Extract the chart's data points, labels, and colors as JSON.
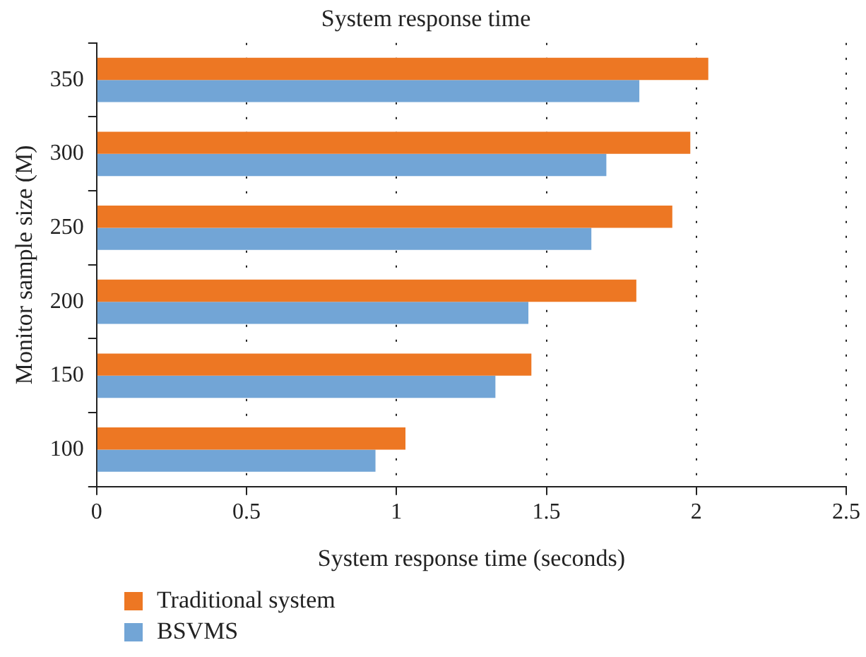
{
  "chart_data": {
    "type": "bar",
    "orientation": "horizontal",
    "title": "System response time",
    "xlabel": "System response time (seconds)",
    "ylabel": "Monitor sample size (M)",
    "categories": [
      "350",
      "300",
      "250",
      "200",
      "150",
      "100"
    ],
    "series": [
      {
        "name": "Traditional system",
        "color": "#ed7723",
        "values": [
          2.04,
          1.98,
          1.92,
          1.8,
          1.45,
          1.03
        ]
      },
      {
        "name": "BSVMS",
        "color": "#72a5d6",
        "values": [
          1.81,
          1.7,
          1.65,
          1.44,
          1.33,
          0.93
        ]
      }
    ],
    "xlim": [
      0,
      2.5
    ],
    "xticks": [
      0,
      0.5,
      1,
      1.5,
      2,
      2.5
    ],
    "grid": "x",
    "legend": "bottom left"
  }
}
